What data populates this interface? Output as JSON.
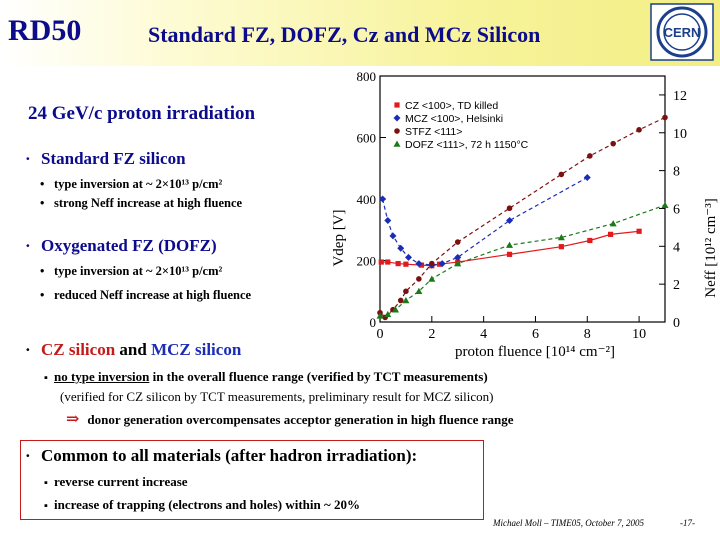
{
  "header": {
    "short_title": "RD50",
    "title": "Standard FZ, DOFZ, Cz and MCz Silicon",
    "logo_text": "CERN"
  },
  "subtitle": "24 GeV/c proton irradiation",
  "sections": {
    "fz": {
      "bullet": "·",
      "title": "Standard FZ silicon",
      "items": [
        "type inversion at  ~ 2×10¹³ p/cm²",
        "strong Neff increase at high fluence"
      ]
    },
    "dofz": {
      "bullet": "·",
      "title": "Oxygenated FZ (DOFZ)",
      "items": [
        "type inversion at  ~ 2×10¹³ p/cm²",
        "reduced Neff increase at high fluence"
      ]
    },
    "cz": {
      "bullet": "·",
      "title_part1": "CZ silicon",
      "title_and": " and ",
      "title_part2": "MCZ silicon",
      "line1_underlined": "no type inversion",
      "line1_rest": " in the overall fluence range  (verified by TCT measurements)",
      "line2": "(verified for CZ silicon by TCT measurements,  preliminary result for MCZ silicon)",
      "line3_arrow": "⇒",
      "line3": "donor generation overcompensates acceptor generation in high fluence range"
    },
    "common": {
      "bullet": "·",
      "title": "Common to all materials (after hadron irradiation):",
      "items": [
        "reverse current increase",
        "increase of trapping (electrons and holes) within ~ 20%"
      ]
    }
  },
  "footer": {
    "author": "Michael Moll – TIME05, October 7, 2005",
    "page": "-17-"
  },
  "chart_data": {
    "type": "scatter",
    "xlabel": "proton fluence [10¹⁴ cm⁻²]",
    "ylabel_left": "Vdep [V]",
    "ylabel_right": "Neff [10¹² cm⁻³]",
    "xlim": [
      0,
      11
    ],
    "ylim": [
      0,
      800
    ],
    "y2lim": [
      0,
      13
    ],
    "x_ticks": [
      "0",
      "2",
      "4",
      "6",
      "8",
      "10"
    ],
    "y_ticks": [
      "0",
      "200",
      "400",
      "600",
      "800"
    ],
    "y2_ticks": [
      "0",
      "2",
      "4",
      "6",
      "8",
      "10",
      "12"
    ],
    "legend": {
      "position": "top-left",
      "entries": [
        "CZ <100>, TD killed",
        "MCZ <100>, Helsinki",
        "STFZ <111>",
        "DOFZ <111>, 72 h 1150°C"
      ]
    },
    "series": [
      {
        "name": "CZ <100>, TD killed",
        "color": "#e31a1c",
        "marker": "square",
        "x": [
          0.05,
          0.3,
          0.7,
          1.0,
          1.6,
          2.0,
          2.3,
          3.0,
          5.0,
          7.0,
          8.1,
          8.9,
          10.0
        ],
        "y": [
          195,
          195,
          190,
          188,
          185,
          183,
          188,
          195,
          220,
          245,
          265,
          285,
          295
        ]
      },
      {
        "name": "MCZ <100>, Helsinki",
        "color": "#1c2db5",
        "marker": "diamond",
        "x": [
          0.1,
          0.3,
          0.5,
          0.8,
          1.1,
          1.5,
          2.0,
          2.4,
          3.0,
          5.0,
          8.0
        ],
        "y": [
          400,
          330,
          280,
          240,
          210,
          190,
          185,
          190,
          210,
          330,
          470
        ]
      },
      {
        "name": "STFZ <111>",
        "color": "#7a1010",
        "marker": "circle",
        "x": [
          0.0,
          0.2,
          0.5,
          0.8,
          1.0,
          1.5,
          2.0,
          3.0,
          5.0,
          7.0,
          8.1,
          9.0,
          10.0,
          11.0
        ],
        "y": [
          30,
          15,
          40,
          70,
          100,
          140,
          190,
          260,
          370,
          480,
          540,
          580,
          625,
          665
        ]
      },
      {
        "name": "DOFZ <111>, 72 h 1150°C",
        "color": "#1a7a1a",
        "marker": "triangle",
        "x": [
          0.0,
          0.3,
          0.6,
          1.0,
          1.5,
          2.0,
          3.0,
          5.0,
          7.0,
          9.0,
          11.0
        ],
        "y": [
          20,
          25,
          40,
          70,
          100,
          140,
          190,
          250,
          275,
          320,
          380
        ]
      }
    ]
  },
  "colors": {
    "title_blue": "#0b0b8c",
    "fz": "#0b0b8c",
    "dofz": "#0b0b8c",
    "cz": "#c41a1a",
    "mcz": "#1c2db5",
    "common": "#000000",
    "box_border": "#c41a1a"
  }
}
